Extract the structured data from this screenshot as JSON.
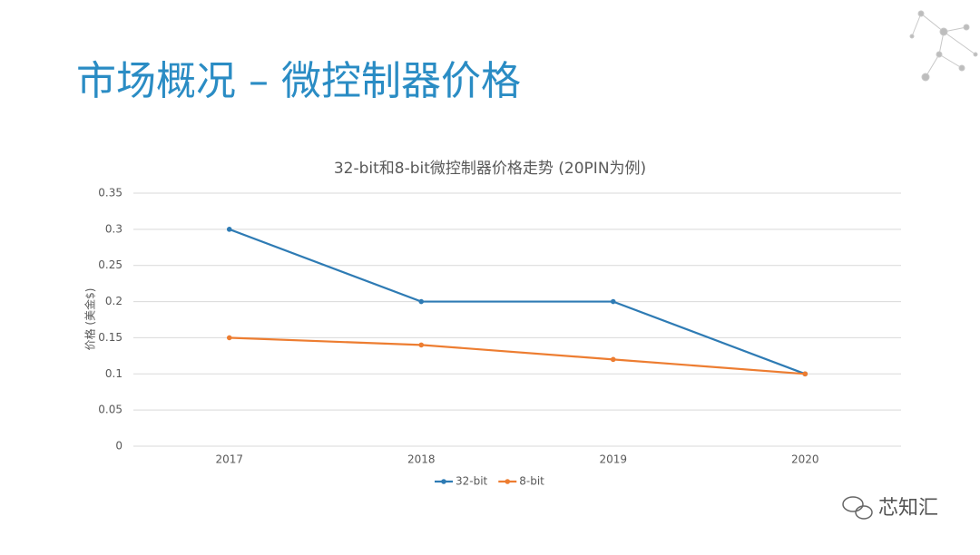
{
  "slide": {
    "title": "市场概况 – 微控制器价格",
    "watermark": "芯知汇"
  },
  "chart_data": {
    "type": "line",
    "title": "32-bit和8-bit微控制器价格走势 (20PIN为例)",
    "y_label": "价格 (美金$)",
    "categories": [
      "2017",
      "2018",
      "2019",
      "2020"
    ],
    "series": [
      {
        "name": "32-bit",
        "color": "#2e7bb4",
        "values": [
          0.3,
          0.2,
          0.2,
          0.1
        ]
      },
      {
        "name": "8-bit",
        "color": "#ed7d31",
        "values": [
          0.15,
          0.14,
          0.12,
          0.1
        ]
      }
    ],
    "ylim": [
      0,
      0.35
    ],
    "yticks": [
      0,
      0.05,
      0.1,
      0.15,
      0.2,
      0.25,
      0.3,
      0.35
    ],
    "grid": true,
    "legend": "bottom"
  }
}
